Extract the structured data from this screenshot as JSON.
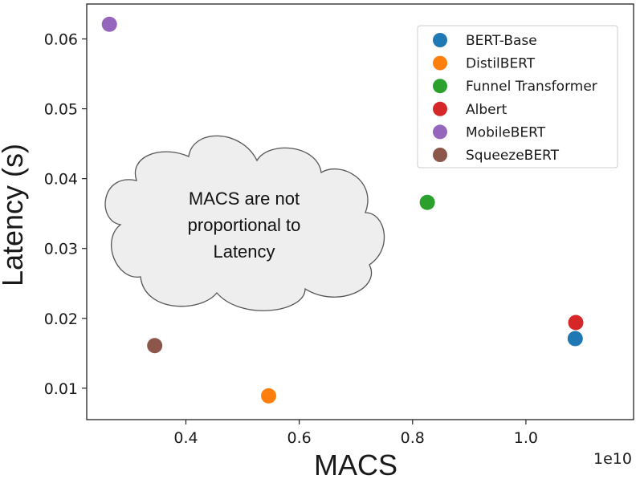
{
  "chart_data": {
    "type": "scatter",
    "xlabel": "MACS",
    "ylabel": "Latency (s)",
    "x_offset_label": "1e10",
    "xlim": [
      0.225,
      1.19
    ],
    "ylim": [
      0.0055,
      0.065
    ],
    "x_ticks": [
      0.4,
      0.6,
      0.8,
      1.0
    ],
    "x_tick_labels": [
      "0.4",
      "0.6",
      "0.8",
      "1.0"
    ],
    "y_ticks": [
      0.01,
      0.02,
      0.03,
      0.04,
      0.05,
      0.06
    ],
    "y_tick_labels": [
      "0.01",
      "0.02",
      "0.03",
      "0.04",
      "0.05",
      "0.06"
    ],
    "grid": false,
    "legend_position": "top-right",
    "series": [
      {
        "name": "BERT-Base",
        "color": "#1f77b4",
        "x": [
          1.087
        ],
        "y": [
          0.0171
        ]
      },
      {
        "name": "DistilBERT",
        "color": "#ff7f0e",
        "x": [
          0.546
        ],
        "y": [
          0.0089
        ]
      },
      {
        "name": "Funnel Transformer",
        "color": "#2ca02c",
        "x": [
          0.826
        ],
        "y": [
          0.0366
        ]
      },
      {
        "name": "Albert",
        "color": "#d62728",
        "x": [
          1.088
        ],
        "y": [
          0.0194
        ]
      },
      {
        "name": "MobileBERT",
        "color": "#9467bd",
        "x": [
          0.265
        ],
        "y": [
          0.0621
        ]
      },
      {
        "name": "SqueezeBERT",
        "color": "#8c564b",
        "x": [
          0.345
        ],
        "y": [
          0.0161
        ]
      }
    ],
    "annotation": {
      "shape": "cloud",
      "lines": [
        "MACS are not",
        "proportional to",
        "Latency"
      ]
    }
  }
}
